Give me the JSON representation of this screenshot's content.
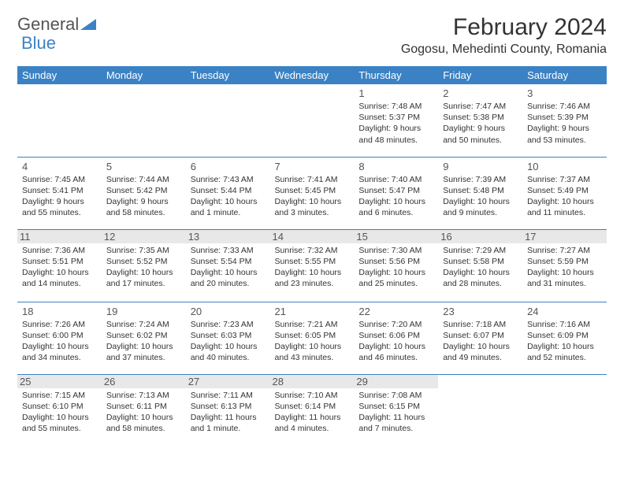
{
  "logo": {
    "word1": "General",
    "word2": "Blue"
  },
  "title": "February 2024",
  "location": "Gogosu, Mehedinti County, Romania",
  "colors": {
    "header_bg": "#3b82c4",
    "header_text": "#ffffff",
    "border": "#3b82c4",
    "shade_bg": "#e8e8e8",
    "text": "#333333"
  },
  "typography": {
    "title_fontsize": 30,
    "location_fontsize": 16,
    "dayhead_fontsize": 13,
    "cell_fontsize": 10.5
  },
  "day_headers": [
    "Sunday",
    "Monday",
    "Tuesday",
    "Wednesday",
    "Thursday",
    "Friday",
    "Saturday"
  ],
  "weeks": [
    [
      {
        "n": "",
        "lines": [
          "",
          "",
          "",
          ""
        ]
      },
      {
        "n": "",
        "lines": [
          "",
          "",
          "",
          ""
        ]
      },
      {
        "n": "",
        "lines": [
          "",
          "",
          "",
          ""
        ]
      },
      {
        "n": "",
        "lines": [
          "",
          "",
          "",
          ""
        ]
      },
      {
        "n": "1",
        "lines": [
          "Sunrise: 7:48 AM",
          "Sunset: 5:37 PM",
          "Daylight: 9 hours",
          "and 48 minutes."
        ]
      },
      {
        "n": "2",
        "lines": [
          "Sunrise: 7:47 AM",
          "Sunset: 5:38 PM",
          "Daylight: 9 hours",
          "and 50 minutes."
        ]
      },
      {
        "n": "3",
        "lines": [
          "Sunrise: 7:46 AM",
          "Sunset: 5:39 PM",
          "Daylight: 9 hours",
          "and 53 minutes."
        ]
      }
    ],
    [
      {
        "n": "4",
        "lines": [
          "Sunrise: 7:45 AM",
          "Sunset: 5:41 PM",
          "Daylight: 9 hours",
          "and 55 minutes."
        ]
      },
      {
        "n": "5",
        "lines": [
          "Sunrise: 7:44 AM",
          "Sunset: 5:42 PM",
          "Daylight: 9 hours",
          "and 58 minutes."
        ]
      },
      {
        "n": "6",
        "lines": [
          "Sunrise: 7:43 AM",
          "Sunset: 5:44 PM",
          "Daylight: 10 hours",
          "and 1 minute."
        ]
      },
      {
        "n": "7",
        "lines": [
          "Sunrise: 7:41 AM",
          "Sunset: 5:45 PM",
          "Daylight: 10 hours",
          "and 3 minutes."
        ]
      },
      {
        "n": "8",
        "lines": [
          "Sunrise: 7:40 AM",
          "Sunset: 5:47 PM",
          "Daylight: 10 hours",
          "and 6 minutes."
        ]
      },
      {
        "n": "9",
        "lines": [
          "Sunrise: 7:39 AM",
          "Sunset: 5:48 PM",
          "Daylight: 10 hours",
          "and 9 minutes."
        ]
      },
      {
        "n": "10",
        "lines": [
          "Sunrise: 7:37 AM",
          "Sunset: 5:49 PM",
          "Daylight: 10 hours",
          "and 11 minutes."
        ]
      }
    ],
    [
      {
        "n": "11",
        "lines": [
          "Sunrise: 7:36 AM",
          "Sunset: 5:51 PM",
          "Daylight: 10 hours",
          "and 14 minutes."
        ]
      },
      {
        "n": "12",
        "lines": [
          "Sunrise: 7:35 AM",
          "Sunset: 5:52 PM",
          "Daylight: 10 hours",
          "and 17 minutes."
        ]
      },
      {
        "n": "13",
        "lines": [
          "Sunrise: 7:33 AM",
          "Sunset: 5:54 PM",
          "Daylight: 10 hours",
          "and 20 minutes."
        ]
      },
      {
        "n": "14",
        "lines": [
          "Sunrise: 7:32 AM",
          "Sunset: 5:55 PM",
          "Daylight: 10 hours",
          "and 23 minutes."
        ]
      },
      {
        "n": "15",
        "lines": [
          "Sunrise: 7:30 AM",
          "Sunset: 5:56 PM",
          "Daylight: 10 hours",
          "and 25 minutes."
        ]
      },
      {
        "n": "16",
        "lines": [
          "Sunrise: 7:29 AM",
          "Sunset: 5:58 PM",
          "Daylight: 10 hours",
          "and 28 minutes."
        ]
      },
      {
        "n": "17",
        "lines": [
          "Sunrise: 7:27 AM",
          "Sunset: 5:59 PM",
          "Daylight: 10 hours",
          "and 31 minutes."
        ]
      }
    ],
    [
      {
        "n": "18",
        "lines": [
          "Sunrise: 7:26 AM",
          "Sunset: 6:00 PM",
          "Daylight: 10 hours",
          "and 34 minutes."
        ]
      },
      {
        "n": "19",
        "lines": [
          "Sunrise: 7:24 AM",
          "Sunset: 6:02 PM",
          "Daylight: 10 hours",
          "and 37 minutes."
        ]
      },
      {
        "n": "20",
        "lines": [
          "Sunrise: 7:23 AM",
          "Sunset: 6:03 PM",
          "Daylight: 10 hours",
          "and 40 minutes."
        ]
      },
      {
        "n": "21",
        "lines": [
          "Sunrise: 7:21 AM",
          "Sunset: 6:05 PM",
          "Daylight: 10 hours",
          "and 43 minutes."
        ]
      },
      {
        "n": "22",
        "lines": [
          "Sunrise: 7:20 AM",
          "Sunset: 6:06 PM",
          "Daylight: 10 hours",
          "and 46 minutes."
        ]
      },
      {
        "n": "23",
        "lines": [
          "Sunrise: 7:18 AM",
          "Sunset: 6:07 PM",
          "Daylight: 10 hours",
          "and 49 minutes."
        ]
      },
      {
        "n": "24",
        "lines": [
          "Sunrise: 7:16 AM",
          "Sunset: 6:09 PM",
          "Daylight: 10 hours",
          "and 52 minutes."
        ]
      }
    ],
    [
      {
        "n": "25",
        "lines": [
          "Sunrise: 7:15 AM",
          "Sunset: 6:10 PM",
          "Daylight: 10 hours",
          "and 55 minutes."
        ]
      },
      {
        "n": "26",
        "lines": [
          "Sunrise: 7:13 AM",
          "Sunset: 6:11 PM",
          "Daylight: 10 hours",
          "and 58 minutes."
        ]
      },
      {
        "n": "27",
        "lines": [
          "Sunrise: 7:11 AM",
          "Sunset: 6:13 PM",
          "Daylight: 11 hours",
          "and 1 minute."
        ]
      },
      {
        "n": "28",
        "lines": [
          "Sunrise: 7:10 AM",
          "Sunset: 6:14 PM",
          "Daylight: 11 hours",
          "and 4 minutes."
        ]
      },
      {
        "n": "29",
        "lines": [
          "Sunrise: 7:08 AM",
          "Sunset: 6:15 PM",
          "Daylight: 11 hours",
          "and 7 minutes."
        ]
      },
      {
        "n": "",
        "lines": [
          "",
          "",
          "",
          ""
        ]
      },
      {
        "n": "",
        "lines": [
          "",
          "",
          "",
          ""
        ]
      }
    ]
  ],
  "shaded_rows": [
    2,
    4
  ]
}
